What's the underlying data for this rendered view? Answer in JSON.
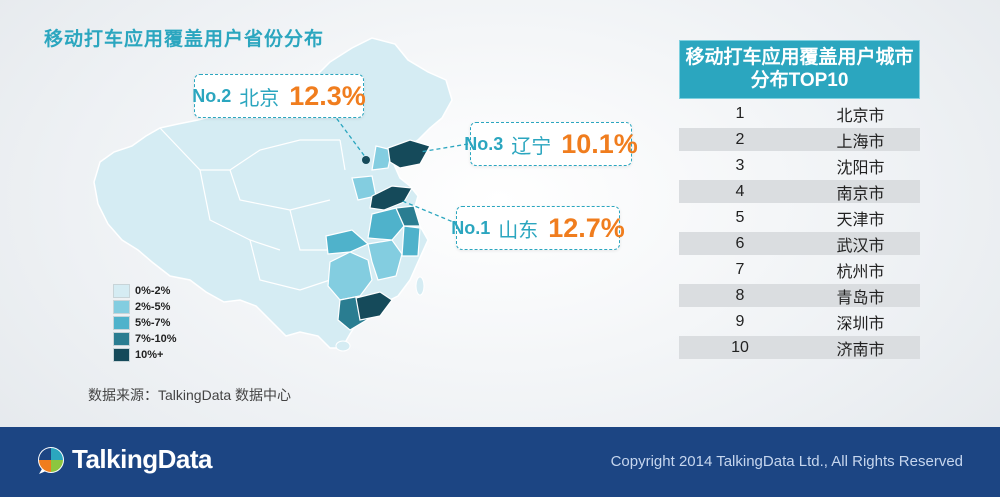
{
  "title": "移动打车应用覆盖用户省份分布",
  "colors": {
    "accent": "#2ba6bf",
    "highlight": "#f07d1e",
    "footer": "#1c4583",
    "level_0_2": "#d5ecf3",
    "level_2_5": "#83cde0",
    "level_5_7": "#4fb2cb",
    "level_7_10": "#2a7d91",
    "level_10_plus": "#154a5a"
  },
  "callouts": [
    {
      "rank": "No.2",
      "province": "北京",
      "value": "12.3%"
    },
    {
      "rank": "No.3",
      "province": "辽宁",
      "value": "10.1%"
    },
    {
      "rank": "No.1",
      "province": "山东",
      "value": "12.7%"
    }
  ],
  "legend": [
    "0%-2%",
    "2%-5%",
    "5%-7%",
    "7%-10%",
    "10%+"
  ],
  "source": "数据来源：TalkingData 数据中心",
  "city_table": {
    "header_line1": "移动打车应用覆盖用户城市",
    "header_line2": "分布TOP10",
    "rows": [
      {
        "rank": "1",
        "city": "北京市"
      },
      {
        "rank": "2",
        "city": "上海市"
      },
      {
        "rank": "3",
        "city": "沈阳市"
      },
      {
        "rank": "4",
        "city": "南京市"
      },
      {
        "rank": "5",
        "city": "天津市"
      },
      {
        "rank": "6",
        "city": "武汉市"
      },
      {
        "rank": "7",
        "city": "杭州市"
      },
      {
        "rank": "8",
        "city": "青岛市"
      },
      {
        "rank": "9",
        "city": "深圳市"
      },
      {
        "rank": "10",
        "city": "济南市"
      }
    ]
  },
  "footer": {
    "logo_text": "TalkingData",
    "logo_icon": "speech-bubble-pinwheel-icon",
    "copyright": "Copyright 2014 TalkingData Ltd., All Rights Reserved"
  }
}
